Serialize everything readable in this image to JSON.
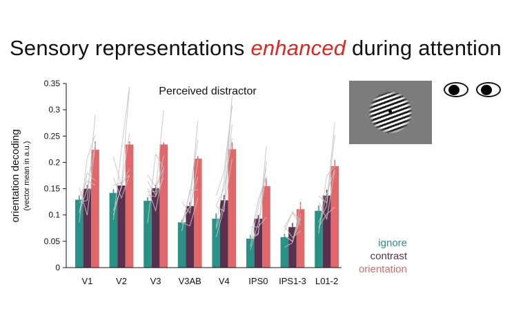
{
  "title": {
    "before": "Sensory representations ",
    "emphasis": "enhanced",
    "after": " during attention"
  },
  "colors": {
    "ignore": "#2a9187",
    "contrast": "#5b2f4e",
    "orientation": "#e0686a",
    "title_emphasis": "#e0261f",
    "subject_lines": "#c4c4c4"
  },
  "icons": {
    "stimulus": "grating-stimulus-icon",
    "eyes": "eye-icon"
  },
  "chart_data": {
    "type": "bar",
    "title": "Perceived distractor",
    "xlabel": "",
    "ylabel": "orientation decoding",
    "ylabel_sub": "(vector mean in a.u.)",
    "ylim": [
      0,
      0.35
    ],
    "yticks": [
      "0",
      "0.05",
      "0.1",
      "0.15",
      "0.2",
      "0.25",
      "0.3",
      "0.35"
    ],
    "ytick_values": [
      0,
      0.05,
      0.1,
      0.15,
      0.2,
      0.25,
      0.3,
      0.35
    ],
    "categories": [
      "V1",
      "V2",
      "V3",
      "V3AB",
      "V4",
      "IPS0",
      "IPS1-3",
      "L01-2"
    ],
    "series": [
      {
        "name": "ignore",
        "values": [
          0.129,
          0.142,
          0.127,
          0.086,
          0.093,
          0.055,
          0.058,
          0.108
        ],
        "errors": [
          0.008,
          0.007,
          0.007,
          0.005,
          0.01,
          0.007,
          0.006,
          0.01
        ]
      },
      {
        "name": "contrast",
        "values": [
          0.15,
          0.156,
          0.151,
          0.117,
          0.128,
          0.093,
          0.077,
          0.137
        ],
        "errors": [
          0.007,
          0.006,
          0.006,
          0.007,
          0.01,
          0.007,
          0.008,
          0.011
        ]
      },
      {
        "name": "orientation",
        "values": [
          0.224,
          0.234,
          0.234,
          0.207,
          0.225,
          0.155,
          0.111,
          0.193
        ],
        "errors": [
          0.016,
          0.006,
          0.004,
          0.005,
          0.013,
          0.014,
          0.014,
          0.012
        ]
      }
    ],
    "subjects_note": "thin grey lines show individual subjects rising from ignore to orientation",
    "grid": false,
    "legend_position": "bottom-right"
  }
}
